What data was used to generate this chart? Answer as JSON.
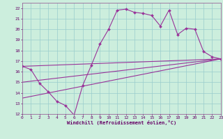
{
  "xlabel": "Windchill (Refroidissement éolien,°C)",
  "bg_color": "#cceedd",
  "line_color": "#993399",
  "grid_color": "#99cccc",
  "xlim": [
    0,
    23
  ],
  "ylim": [
    12,
    22.5
  ],
  "xticks": [
    0,
    1,
    2,
    3,
    4,
    5,
    6,
    7,
    8,
    9,
    10,
    11,
    12,
    13,
    14,
    15,
    16,
    17,
    18,
    19,
    20,
    21,
    22,
    23
  ],
  "yticks": [
    12,
    13,
    14,
    15,
    16,
    17,
    18,
    19,
    20,
    21,
    22
  ],
  "series1_x": [
    0,
    1,
    2,
    3,
    4,
    5,
    6,
    7,
    8,
    9,
    10,
    11,
    12,
    13,
    14,
    15,
    16,
    17,
    18,
    19,
    20,
    21,
    22,
    23
  ],
  "series1_y": [
    16.5,
    16.2,
    14.9,
    14.1,
    13.2,
    12.8,
    11.9,
    14.7,
    16.6,
    18.6,
    20.0,
    21.8,
    21.9,
    21.6,
    21.5,
    21.3,
    20.3,
    21.8,
    19.5,
    20.1,
    20.0,
    17.9,
    17.4,
    17.2
  ],
  "line2_x": [
    0,
    23
  ],
  "line2_y": [
    16.5,
    17.2
  ],
  "line3_x": [
    0,
    23
  ],
  "line3_y": [
    15.0,
    17.2
  ],
  "line4_x": [
    0,
    23
  ],
  "line4_y": [
    13.5,
    17.2
  ]
}
